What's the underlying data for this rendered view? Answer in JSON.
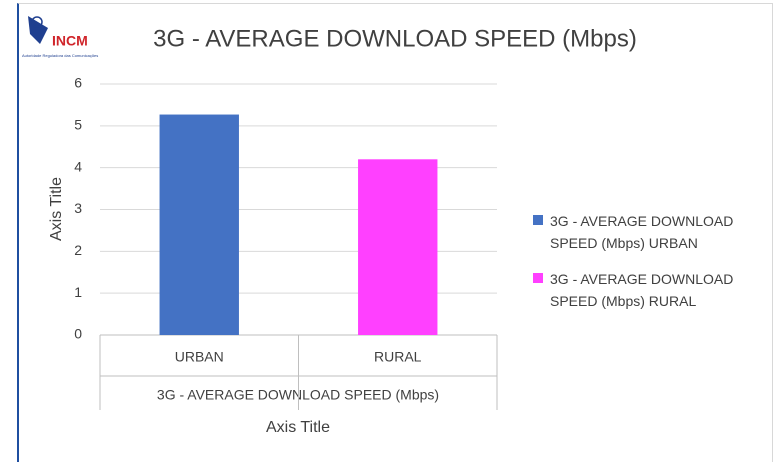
{
  "logo": {
    "name": "INCM",
    "subtitle": "Autoridade Reguladora das Comunicações"
  },
  "chart_data": {
    "type": "bar",
    "title": "3G - AVERAGE DOWNLOAD SPEED (Mbps)",
    "categories": [
      "URBAN",
      "RURAL"
    ],
    "category_group": "3G - AVERAGE DOWNLOAD SPEED (Mbps)",
    "x_label": "Axis Title",
    "y_label": "Axis Title",
    "series": [
      {
        "name": "3G - AVERAGE DOWNLOAD SPEED (Mbps) URBAN",
        "color": "#4472c4",
        "values": [
          5.27,
          null
        ]
      },
      {
        "name": "3G - AVERAGE DOWNLOAD SPEED (Mbps) RURAL",
        "color": "#ff40ff",
        "values": [
          null,
          4.2
        ]
      }
    ],
    "ylim": [
      0,
      6
    ],
    "yticks": [
      0,
      1,
      2,
      3,
      4,
      5,
      6
    ],
    "grid": true,
    "legend": "right"
  }
}
